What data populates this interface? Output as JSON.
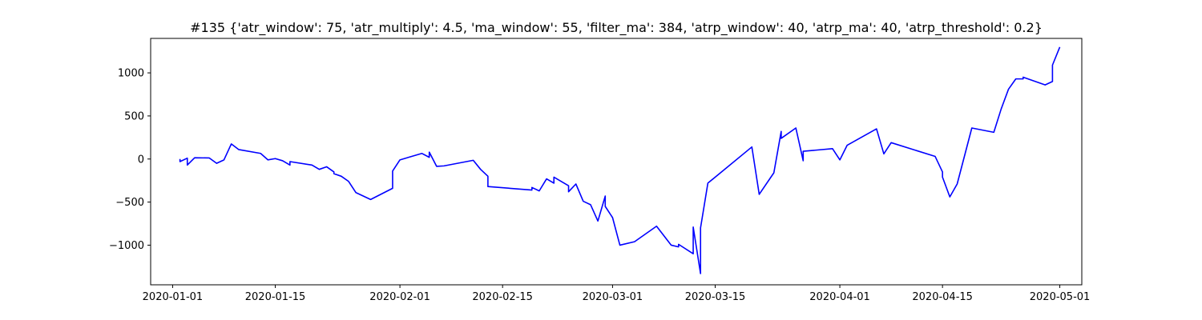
{
  "chart_data": {
    "type": "line",
    "title": "#135 {'atr_window': 75, 'atr_multiply': 4.5, 'ma_window': 55, 'filter_ma': 384, 'atrp_window': 40, 'atrp_ma': 40, 'atrp_threshold': 0.2}",
    "xlabel": "",
    "ylabel": "",
    "grid": false,
    "legend": "none",
    "xlim": [
      "2019-12-29",
      "2020-05-04"
    ],
    "ylim": [
      -1460,
      1400
    ],
    "x_ticks": [
      {
        "date": "2020-01-01",
        "label": "2020-01-01"
      },
      {
        "date": "2020-01-15",
        "label": "2020-01-15"
      },
      {
        "date": "2020-02-01",
        "label": "2020-02-01"
      },
      {
        "date": "2020-02-15",
        "label": "2020-02-15"
      },
      {
        "date": "2020-03-01",
        "label": "2020-03-01"
      },
      {
        "date": "2020-03-15",
        "label": "2020-03-15"
      },
      {
        "date": "2020-04-01",
        "label": "2020-04-01"
      },
      {
        "date": "2020-04-15",
        "label": "2020-04-15"
      },
      {
        "date": "2020-05-01",
        "label": "2020-05-01"
      }
    ],
    "y_ticks": [
      {
        "value": 1000,
        "label": "1000"
      },
      {
        "value": 500,
        "label": "500"
      },
      {
        "value": 0,
        "label": "0"
      },
      {
        "value": -500,
        "label": "−500"
      },
      {
        "value": -1000,
        "label": "−1000"
      }
    ],
    "series": [
      {
        "color": "#0000ff",
        "points": [
          [
            "2020-01-02",
            0
          ],
          [
            "2020-01-02",
            -30
          ],
          [
            "2020-01-03",
            10
          ],
          [
            "2020-01-03",
            -60
          ],
          [
            "2020-01-03",
            -40
          ],
          [
            "2020-01-03",
            -70
          ],
          [
            "2020-01-04",
            15
          ],
          [
            "2020-01-06",
            12
          ],
          [
            "2020-01-07",
            -50
          ],
          [
            "2020-01-08",
            -10
          ],
          [
            "2020-01-09",
            175
          ],
          [
            "2020-01-10",
            110
          ],
          [
            "2020-01-13",
            65
          ],
          [
            "2020-01-14",
            -10
          ],
          [
            "2020-01-15",
            5
          ],
          [
            "2020-01-16",
            -20
          ],
          [
            "2020-01-17",
            -70
          ],
          [
            "2020-01-17",
            -30
          ],
          [
            "2020-01-20",
            -70
          ],
          [
            "2020-01-21",
            -120
          ],
          [
            "2020-01-22",
            -90
          ],
          [
            "2020-01-23",
            -150
          ],
          [
            "2020-01-23",
            -170
          ],
          [
            "2020-01-24",
            -200
          ],
          [
            "2020-01-25",
            -260
          ],
          [
            "2020-01-26",
            -390
          ],
          [
            "2020-01-28",
            -470
          ],
          [
            "2020-01-31",
            -340
          ],
          [
            "2020-01-31",
            -140
          ],
          [
            "2020-02-01",
            -10
          ],
          [
            "2020-02-04",
            65
          ],
          [
            "2020-02-05",
            20
          ],
          [
            "2020-02-05",
            80
          ],
          [
            "2020-02-06",
            -85
          ],
          [
            "2020-02-07",
            -80
          ],
          [
            "2020-02-11",
            -15
          ],
          [
            "2020-02-12",
            -120
          ],
          [
            "2020-02-13",
            -200
          ],
          [
            "2020-02-13",
            -320
          ],
          [
            "2020-02-19",
            -360
          ],
          [
            "2020-02-19",
            -330
          ],
          [
            "2020-02-20",
            -370
          ],
          [
            "2020-02-21",
            -230
          ],
          [
            "2020-02-22",
            -280
          ],
          [
            "2020-02-22",
            -210
          ],
          [
            "2020-02-24",
            -310
          ],
          [
            "2020-02-24",
            -380
          ],
          [
            "2020-02-25",
            -290
          ],
          [
            "2020-02-26",
            -490
          ],
          [
            "2020-02-27",
            -530
          ],
          [
            "2020-02-28",
            -720
          ],
          [
            "2020-02-29",
            -430
          ],
          [
            "2020-02-29",
            -550
          ],
          [
            "2020-03-01",
            -680
          ],
          [
            "2020-03-02",
            -1000
          ],
          [
            "2020-03-04",
            -960
          ],
          [
            "2020-03-07",
            -780
          ],
          [
            "2020-03-09",
            -1000
          ],
          [
            "2020-03-10",
            -1020
          ],
          [
            "2020-03-10",
            -990
          ],
          [
            "2020-03-12",
            -1100
          ],
          [
            "2020-03-12",
            -790
          ],
          [
            "2020-03-13",
            -1330
          ],
          [
            "2020-03-13",
            -800
          ],
          [
            "2020-03-14",
            -280
          ],
          [
            "2020-03-20",
            140
          ],
          [
            "2020-03-21",
            -410
          ],
          [
            "2020-03-23",
            -160
          ],
          [
            "2020-03-24",
            320
          ],
          [
            "2020-03-24",
            240
          ],
          [
            "2020-03-26",
            360
          ],
          [
            "2020-03-27",
            -20
          ],
          [
            "2020-03-27",
            90
          ],
          [
            "2020-03-31",
            120
          ],
          [
            "2020-04-01",
            -10
          ],
          [
            "2020-04-02",
            160
          ],
          [
            "2020-04-06",
            350
          ],
          [
            "2020-04-07",
            60
          ],
          [
            "2020-04-08",
            190
          ],
          [
            "2020-04-14",
            30
          ],
          [
            "2020-04-15",
            -150
          ],
          [
            "2020-04-15",
            -210
          ],
          [
            "2020-04-16",
            -440
          ],
          [
            "2020-04-17",
            -290
          ],
          [
            "2020-04-19",
            360
          ],
          [
            "2020-04-22",
            310
          ],
          [
            "2020-04-23",
            580
          ],
          [
            "2020-04-24",
            810
          ],
          [
            "2020-04-25",
            930
          ],
          [
            "2020-04-26",
            930
          ],
          [
            "2020-04-26",
            950
          ],
          [
            "2020-04-29",
            860
          ],
          [
            "2020-04-30",
            900
          ],
          [
            "2020-04-30",
            1090
          ],
          [
            "2020-05-01",
            1300
          ]
        ]
      }
    ]
  }
}
